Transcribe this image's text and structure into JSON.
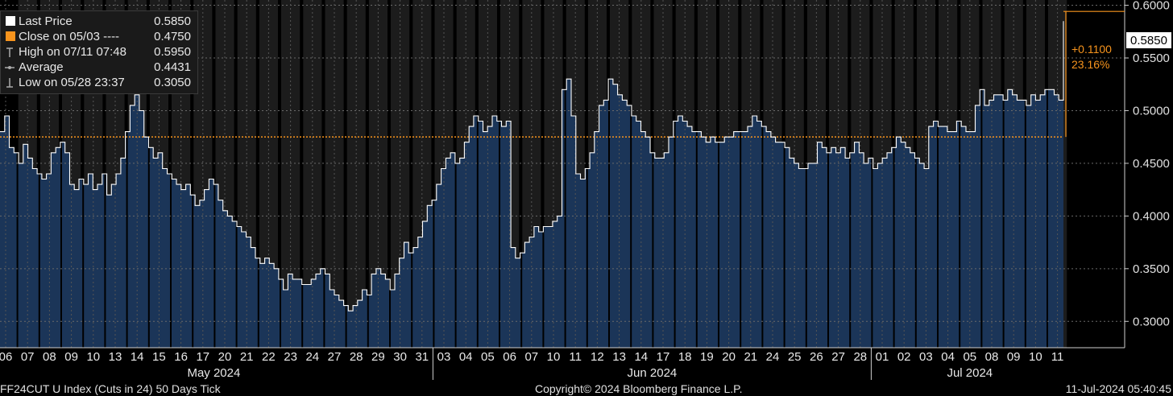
{
  "legend": {
    "last_price": {
      "label": "Last Price",
      "value": "0.5850"
    },
    "close": {
      "label": "Close on 05/03 ----",
      "value": "0.4750"
    },
    "high": {
      "label": "High on 07/11 07:48",
      "value": "0.5950"
    },
    "average": {
      "label": "Average",
      "value": "0.4431"
    },
    "low": {
      "label": "Low on 05/28 23:37",
      "value": "0.3050"
    }
  },
  "annotations": {
    "last_price_box": "0.5850",
    "change": "+0.1100",
    "change_pct": "23.16%"
  },
  "footer": {
    "left": "FF24CUT U Index (Cuts in 24) 50 Days  Tick",
    "center": "Copyright© 2024 Bloomberg Finance L.P.",
    "right": "11-Jul-2024 05:40:45"
  },
  "colors": {
    "area_fill": "#1b3558",
    "line": "#ffffff",
    "reference_line": "#f7941d",
    "last_price_box": "#ffffff",
    "change_text": "#f7941d",
    "background": "#000000",
    "weekend_band": "#1c1c1c"
  },
  "chart_data": {
    "type": "area",
    "title": "",
    "xlabel": "",
    "ylabel": "",
    "ylim": [
      0.275,
      0.605
    ],
    "yticks": [
      "0.6000",
      "0.5500",
      "0.5000",
      "0.4500",
      "0.4000",
      "0.3500",
      "0.3000"
    ],
    "ytick_values": [
      0.6,
      0.55,
      0.5,
      0.45,
      0.4,
      0.35,
      0.3
    ],
    "reference_line": {
      "label": "Close on 05/03",
      "value": 0.475
    },
    "grid": true,
    "months": [
      {
        "label": "May 2024",
        "days": [
          "06",
          "07",
          "08",
          "09",
          "10",
          "13",
          "14",
          "15",
          "16",
          "17",
          "20",
          "21",
          "22",
          "23",
          "24",
          "27",
          "28",
          "29",
          "30",
          "31"
        ]
      },
      {
        "label": "Jun 2024",
        "days": [
          "03",
          "04",
          "05",
          "06",
          "07",
          "10",
          "11",
          "12",
          "13",
          "14",
          "17",
          "18",
          "19",
          "20",
          "21",
          "24",
          "25",
          "26",
          "27",
          "28"
        ]
      },
      {
        "label": "Jul 2024",
        "days": [
          "01",
          "02",
          "03",
          "04",
          "05",
          "08",
          "09",
          "10",
          "11"
        ]
      }
    ],
    "series": [
      {
        "values": [
          0.48,
          0.495,
          0.465,
          0.46,
          0.45,
          0.468,
          0.455,
          0.445,
          0.44,
          0.435,
          0.44,
          0.46,
          0.465,
          0.47,
          0.46,
          0.43,
          0.425,
          0.435,
          0.43,
          0.44,
          0.425,
          0.43,
          0.44,
          0.42,
          0.43,
          0.44,
          0.455,
          0.48,
          0.505,
          0.515,
          0.5,
          0.475,
          0.465,
          0.455,
          0.46,
          0.445,
          0.44,
          0.435,
          0.43,
          0.425,
          0.43,
          0.42,
          0.41,
          0.415,
          0.425,
          0.435,
          0.43,
          0.415,
          0.405,
          0.4,
          0.395,
          0.39,
          0.385,
          0.38,
          0.37,
          0.36,
          0.355,
          0.36,
          0.355,
          0.35,
          0.34,
          0.33,
          0.345,
          0.34,
          0.34,
          0.335,
          0.335,
          0.34,
          0.345,
          0.35,
          0.345,
          0.33,
          0.325,
          0.32,
          0.315,
          0.31,
          0.315,
          0.32,
          0.33,
          0.325,
          0.345,
          0.35,
          0.345,
          0.34,
          0.33,
          0.345,
          0.36,
          0.375,
          0.365,
          0.37,
          0.38,
          0.395,
          0.41,
          0.415,
          0.43,
          0.445,
          0.455,
          0.46,
          0.45,
          0.455,
          0.47,
          0.485,
          0.495,
          0.49,
          0.48,
          0.485,
          0.495,
          0.49,
          0.485,
          0.49,
          0.37,
          0.36,
          0.365,
          0.375,
          0.38,
          0.39,
          0.385,
          0.39,
          0.39,
          0.395,
          0.4,
          0.52,
          0.53,
          0.495,
          0.44,
          0.435,
          0.445,
          0.46,
          0.48,
          0.505,
          0.51,
          0.53,
          0.525,
          0.515,
          0.51,
          0.505,
          0.495,
          0.49,
          0.48,
          0.475,
          0.46,
          0.455,
          0.455,
          0.46,
          0.475,
          0.49,
          0.495,
          0.49,
          0.485,
          0.48,
          0.48,
          0.475,
          0.47,
          0.475,
          0.47,
          0.47,
          0.475,
          0.475,
          0.48,
          0.48,
          0.48,
          0.485,
          0.495,
          0.49,
          0.485,
          0.48,
          0.475,
          0.47,
          0.47,
          0.465,
          0.455,
          0.45,
          0.445,
          0.445,
          0.45,
          0.45,
          0.47,
          0.465,
          0.46,
          0.465,
          0.46,
          0.465,
          0.455,
          0.46,
          0.47,
          0.46,
          0.45,
          0.455,
          0.445,
          0.45,
          0.455,
          0.46,
          0.465,
          0.475,
          0.47,
          0.465,
          0.46,
          0.455,
          0.45,
          0.445,
          0.485,
          0.49,
          0.485,
          0.485,
          0.48,
          0.48,
          0.49,
          0.485,
          0.48,
          0.48,
          0.505,
          0.52,
          0.505,
          0.51,
          0.515,
          0.515,
          0.51,
          0.52,
          0.515,
          0.51,
          0.51,
          0.505,
          0.515,
          0.51,
          0.515,
          0.52,
          0.52,
          0.515,
          0.51,
          0.585
        ]
      }
    ]
  }
}
